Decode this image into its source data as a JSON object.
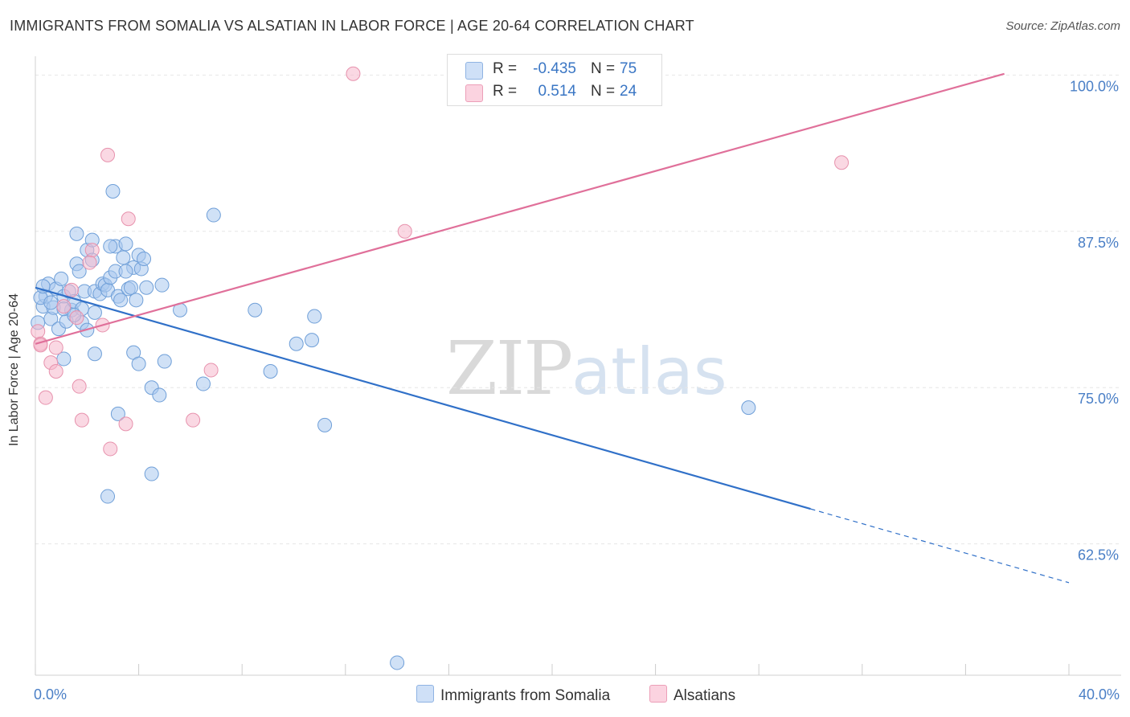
{
  "header": {
    "title": "IMMIGRANTS FROM SOMALIA VS ALSATIAN IN LABOR FORCE | AGE 20-64 CORRELATION CHART",
    "source": "Source: ZipAtlas.com"
  },
  "watermark": {
    "zip": "ZIP",
    "atlas": "atlas"
  },
  "legend": {
    "rows": [
      {
        "r_label": "R =",
        "r_value": "-0.435",
        "n_label": "N =",
        "n_value": "75",
        "color": "#a9c8ef"
      },
      {
        "r_label": "R =",
        "r_value": "0.514",
        "n_label": "N =",
        "n_value": "24",
        "color": "#f5b8cc"
      }
    ]
  },
  "bottom_legend": {
    "items": [
      {
        "label": "Immigrants from Somalia",
        "color": "#a9c8ef"
      },
      {
        "label": "Alsatians",
        "color": "#f5b8cc"
      }
    ]
  },
  "chart_data": {
    "type": "scatter",
    "title": "IMMIGRANTS FROM SOMALIA VS ALSATIAN IN LABOR FORCE | AGE 20-64 CORRELATION CHART",
    "xlabel": "",
    "ylabel": "In Labor Force | Age 20-64",
    "xlim": [
      0,
      40
    ],
    "ylim": [
      52,
      101.5
    ],
    "x_tick_labels": [
      {
        "value": 0,
        "label": "0.0%"
      },
      {
        "value": 40,
        "label": "40.0%"
      }
    ],
    "y_tick_labels": [
      {
        "value": 100,
        "label": "100.0%"
      },
      {
        "value": 87.5,
        "label": "87.5%"
      },
      {
        "value": 75,
        "label": "75.0%"
      },
      {
        "value": 62.5,
        "label": "62.5%"
      }
    ],
    "grid": true,
    "series": [
      {
        "name": "Immigrants from Somalia",
        "color": "#a9c8ef",
        "stroke": "#6f9fd8",
        "points": [
          [
            0.1,
            80.2
          ],
          [
            0.3,
            81.5
          ],
          [
            0.4,
            82.3
          ],
          [
            0.5,
            83.3
          ],
          [
            0.6,
            80.5
          ],
          [
            0.7,
            81.4
          ],
          [
            0.8,
            82.9
          ],
          [
            0.9,
            79.7
          ],
          [
            1.0,
            83.7
          ],
          [
            1.1,
            82.3
          ],
          [
            1.2,
            80.3
          ],
          [
            1.3,
            82.7
          ],
          [
            1.4,
            81.2
          ],
          [
            1.5,
            81.9
          ],
          [
            1.6,
            84.9
          ],
          [
            1.6,
            87.3
          ],
          [
            1.7,
            84.3
          ],
          [
            1.8,
            80.2
          ],
          [
            1.9,
            82.7
          ],
          [
            2.0,
            79.6
          ],
          [
            2.0,
            86.0
          ],
          [
            2.2,
            85.2
          ],
          [
            2.3,
            81.0
          ],
          [
            2.3,
            82.7
          ],
          [
            2.5,
            82.5
          ],
          [
            2.6,
            83.3
          ],
          [
            2.7,
            83.2
          ],
          [
            2.8,
            82.8
          ],
          [
            2.9,
            83.8
          ],
          [
            3.1,
            84.3
          ],
          [
            3.1,
            86.3
          ],
          [
            3.2,
            82.3
          ],
          [
            3.3,
            82.0
          ],
          [
            3.4,
            85.4
          ],
          [
            3.5,
            86.5
          ],
          [
            3.6,
            82.9
          ],
          [
            3.7,
            83.0
          ],
          [
            3.8,
            84.6
          ],
          [
            3.9,
            82.0
          ],
          [
            4.0,
            85.6
          ],
          [
            4.1,
            84.5
          ],
          [
            4.2,
            85.3
          ],
          [
            4.3,
            83.0
          ],
          [
            2.2,
            86.8
          ],
          [
            1.1,
            81.3
          ],
          [
            0.2,
            82.2
          ],
          [
            0.6,
            81.8
          ],
          [
            1.8,
            81.3
          ],
          [
            2.9,
            86.3
          ],
          [
            0.3,
            83.1
          ],
          [
            4.9,
            83.2
          ],
          [
            5.0,
            77.1
          ],
          [
            5.6,
            81.2
          ],
          [
            6.5,
            75.3
          ],
          [
            6.9,
            88.8
          ],
          [
            8.5,
            81.2
          ],
          [
            9.1,
            76.3
          ],
          [
            10.1,
            78.5
          ],
          [
            10.7,
            78.8
          ],
          [
            10.8,
            80.7
          ],
          [
            11.2,
            72.0
          ],
          [
            3.8,
            77.8
          ],
          [
            4.0,
            76.9
          ],
          [
            4.5,
            75.0
          ],
          [
            4.8,
            74.4
          ],
          [
            2.3,
            77.7
          ],
          [
            1.1,
            77.3
          ],
          [
            3.2,
            72.9
          ],
          [
            4.5,
            68.1
          ],
          [
            2.8,
            66.3
          ],
          [
            3.0,
            90.7
          ],
          [
            1.5,
            80.8
          ],
          [
            14.0,
            53.0
          ],
          [
            27.6,
            73.4
          ],
          [
            3.5,
            84.3
          ]
        ]
      },
      {
        "name": "Alsatians",
        "color": "#f5b8cc",
        "stroke": "#e792ad",
        "points": [
          [
            0.1,
            79.5
          ],
          [
            0.2,
            78.5
          ],
          [
            0.4,
            74.2
          ],
          [
            0.6,
            77.0
          ],
          [
            0.8,
            76.3
          ],
          [
            0.8,
            78.2
          ],
          [
            1.1,
            81.5
          ],
          [
            1.4,
            82.8
          ],
          [
            1.6,
            80.6
          ],
          [
            1.7,
            75.1
          ],
          [
            1.8,
            72.4
          ],
          [
            2.1,
            85.0
          ],
          [
            2.2,
            86.0
          ],
          [
            2.6,
            80.0
          ],
          [
            2.8,
            93.6
          ],
          [
            2.9,
            70.1
          ],
          [
            3.5,
            72.1
          ],
          [
            3.6,
            88.5
          ],
          [
            6.1,
            72.4
          ],
          [
            6.8,
            76.4
          ],
          [
            12.3,
            100.1
          ],
          [
            14.3,
            87.5
          ],
          [
            31.2,
            93.0
          ],
          [
            0.2,
            78.4
          ]
        ]
      }
    ],
    "trendlines": [
      {
        "series": "Immigrants from Somalia",
        "color": "#3070c8",
        "x0": 0,
        "y0": 83.0,
        "x1": 30.0,
        "y1": 65.3,
        "dashed_to_x": 40,
        "dashed_to_y": 59.4
      },
      {
        "series": "Alsatians",
        "color": "#e0709a",
        "x0": 0,
        "y0": 78.5,
        "x1": 37.5,
        "y1": 100.1
      }
    ]
  }
}
